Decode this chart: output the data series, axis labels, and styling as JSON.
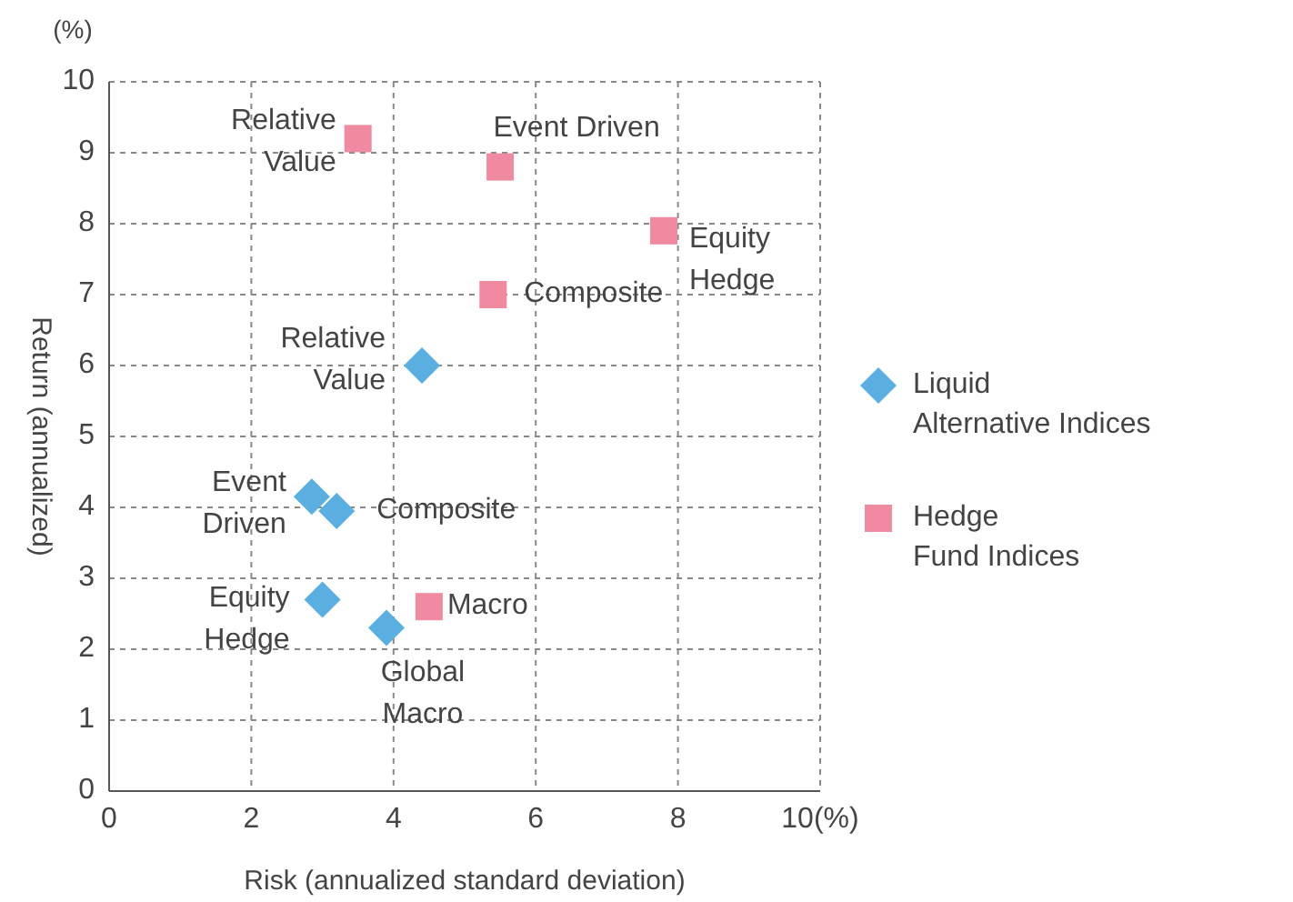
{
  "chart_data": {
    "type": "scatter",
    "xlabel": "Risk (annualized standard deviation)",
    "ylabel": "Return (annualized)",
    "xlim": [
      0,
      10
    ],
    "xticks": [
      0,
      2,
      4,
      6,
      8,
      {
        "value": 10,
        "label": "10(%)"
      }
    ],
    "ylim": [
      0,
      10
    ],
    "yticks": [
      0,
      1,
      2,
      3,
      4,
      5,
      6,
      7,
      8,
      9,
      10
    ],
    "grid": true,
    "legend": "right",
    "series": [
      {
        "name": "Liquid Alternative Indices",
        "color": "#5aaee0",
        "marker": "diamond",
        "x": [
          4.4,
          2.85,
          3.2,
          3.0,
          3.9
        ],
        "values": [
          6.0,
          4.15,
          3.95,
          2.7,
          2.3
        ]
      },
      {
        "name": "Hedge Fund Indices",
        "color": "#f08aa0",
        "marker": "square",
        "x": [
          3.5,
          5.5,
          7.8,
          5.4,
          4.5
        ],
        "values": [
          9.2,
          8.8,
          7.9,
          7.0,
          2.6
        ]
      }
    ],
    "annotations": [
      "(%)",
      {
        "text": "Relative\nValue",
        "x": 4.4,
        "y": 6.0
      },
      {
        "text": "Event\nDriven",
        "x": 2.85,
        "y": 4.15
      },
      {
        "text": "Composite",
        "x": 3.2,
        "y": 3.95
      },
      {
        "text": "Equity\nHedge",
        "x": 3.0,
        "y": 2.7
      },
      {
        "text": "Global\nMacro",
        "x": 3.9,
        "y": 2.3
      },
      {
        "text": "Relative\nValue",
        "x": 3.5,
        "y": 9.2
      },
      {
        "text": "Event Driven",
        "x": 5.5,
        "y": 8.8
      },
      {
        "text": "Equity\nHedge",
        "x": 7.8,
        "y": 7.9
      },
      {
        "text": "Composite",
        "x": 5.4,
        "y": 7.0
      },
      {
        "text": "Macro",
        "x": 4.5,
        "y": 2.6
      }
    ]
  }
}
